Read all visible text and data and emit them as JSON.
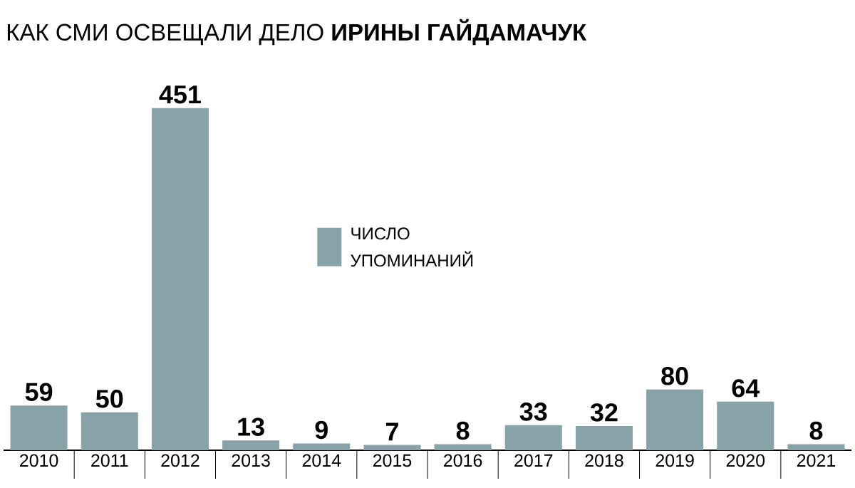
{
  "chart_data": {
    "type": "bar",
    "title": "КАК СМИ ОСВЕЩАЛИ ДЕЛО **ИРИНЫ ГАЙДАМАЧУК**",
    "categories": [
      "2010",
      "2011",
      "2012",
      "2013",
      "2014",
      "2015",
      "2016",
      "2017",
      "2018",
      "2019",
      "2020",
      "2021"
    ],
    "series": [
      {
        "name": "ЧИСЛО УПОМИНАНИЙ",
        "color": "#87a2a8",
        "values": [
          59,
          50,
          451,
          13,
          9,
          7,
          8,
          33,
          32,
          80,
          64,
          8
        ]
      }
    ],
    "data_labels": true,
    "legend": "center"
  }
}
